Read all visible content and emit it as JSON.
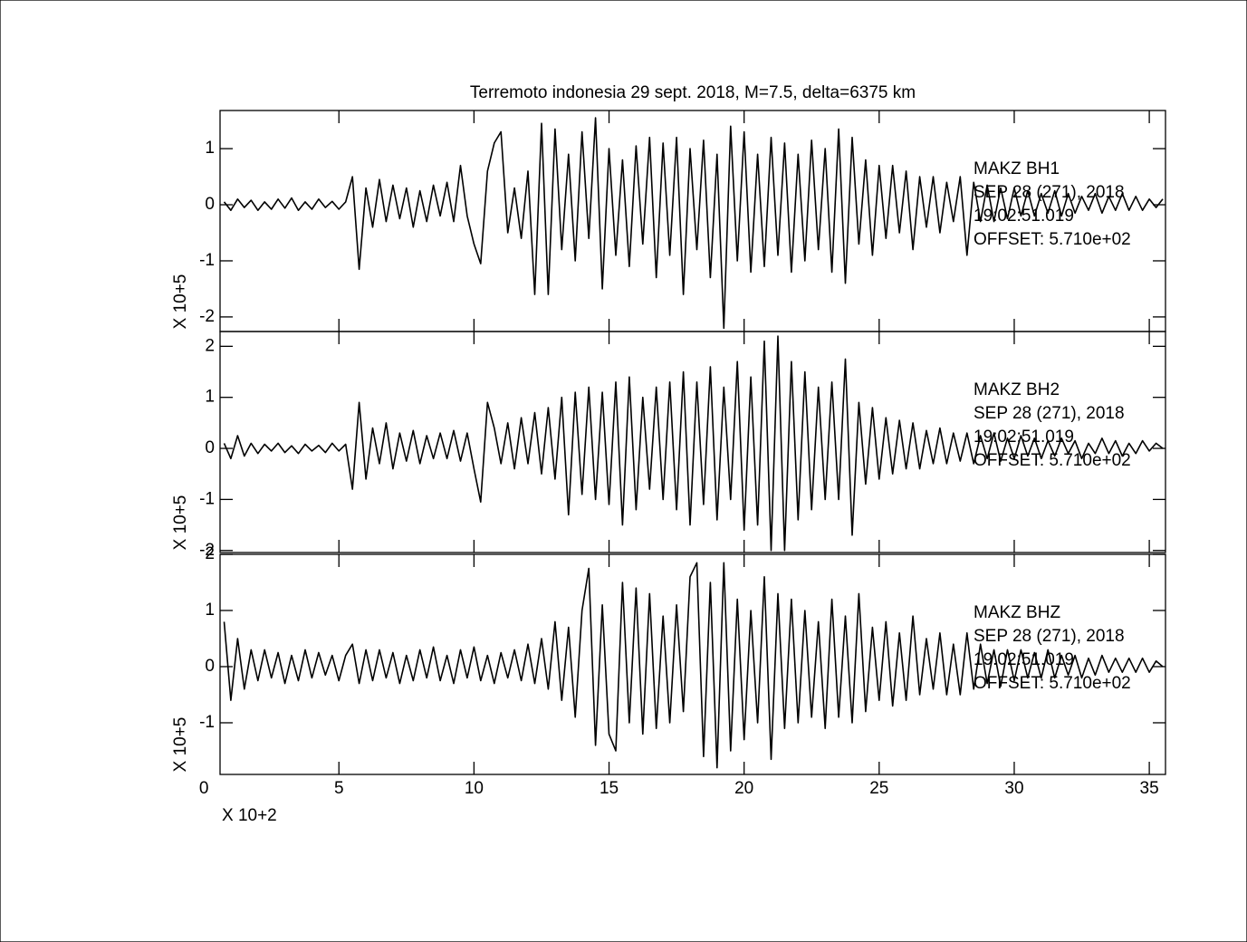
{
  "chart_data": [
    {
      "type": "line",
      "title": "Terremoto indonesia 29 sept. 2018, M=7.5, delta=6375 km",
      "ylabel": "X 10+5",
      "annotations": [
        "MAKZ   BH1",
        "SEP 28 (271), 2018",
        "19:02:51.019",
        "OFFSET:   5.710e+02"
      ],
      "color": "#000000",
      "xlim": [
        0.6,
        35.6
      ],
      "ylim": [
        -2.26,
        1.68
      ],
      "yticks": [
        -2,
        -1,
        0,
        1
      ],
      "x": [
        0.75,
        1,
        1.25,
        1.5,
        1.75,
        2,
        2.25,
        2.5,
        2.75,
        3,
        3.25,
        3.5,
        3.75,
        4,
        4.25,
        4.5,
        4.75,
        5,
        5.25,
        5.5,
        5.75,
        6,
        6.25,
        6.5,
        6.75,
        7,
        7.25,
        7.5,
        7.75,
        8,
        8.25,
        8.5,
        8.75,
        9,
        9.25,
        9.5,
        9.75,
        10,
        10.25,
        10.5,
        10.75,
        11,
        11.25,
        11.5,
        11.75,
        12,
        12.25,
        12.5,
        12.75,
        13,
        13.25,
        13.5,
        13.75,
        14,
        14.25,
        14.5,
        14.75,
        15,
        15.25,
        15.5,
        15.75,
        16,
        16.25,
        16.5,
        16.75,
        17,
        17.25,
        17.5,
        17.75,
        18,
        18.25,
        18.5,
        18.75,
        19,
        19.25,
        19.5,
        19.75,
        20,
        20.25,
        20.5,
        20.75,
        21,
        21.25,
        21.5,
        21.75,
        22,
        22.25,
        22.5,
        22.75,
        23,
        23.25,
        23.5,
        23.75,
        24,
        24.25,
        24.5,
        24.75,
        25,
        25.25,
        25.5,
        25.75,
        26,
        26.25,
        26.5,
        26.75,
        27,
        27.25,
        27.5,
        27.75,
        28,
        28.25,
        28.5,
        28.75,
        29,
        29.25,
        29.5,
        29.75,
        30,
        30.25,
        30.5,
        30.75,
        31,
        31.25,
        31.5,
        31.75,
        32,
        32.25,
        32.5,
        32.75,
        33,
        33.25,
        33.5,
        33.75,
        34,
        34.25,
        34.5,
        34.75,
        35,
        35.25,
        35.5
      ],
      "values": [
        0.05,
        -0.1,
        0.1,
        -0.05,
        0.08,
        -0.1,
        0.05,
        -0.08,
        0.1,
        -0.06,
        0.12,
        -0.1,
        0.05,
        -0.08,
        0.1,
        -0.05,
        0.06,
        -0.08,
        0.05,
        0.5,
        -1.15,
        0.3,
        -0.4,
        0.45,
        -0.3,
        0.35,
        -0.25,
        0.3,
        -0.4,
        0.25,
        -0.3,
        0.35,
        -0.2,
        0.4,
        -0.3,
        0.7,
        -0.2,
        -0.7,
        -1.05,
        0.6,
        1.1,
        1.3,
        -0.5,
        0.3,
        -0.6,
        0.6,
        -1.6,
        1.45,
        -1.6,
        1.35,
        -0.8,
        0.9,
        -1.0,
        1.3,
        -0.6,
        1.55,
        -1.5,
        1.0,
        -0.9,
        0.8,
        -1.1,
        1.05,
        -0.7,
        1.2,
        -1.3,
        1.1,
        -0.9,
        1.2,
        -1.6,
        1.0,
        -0.8,
        1.15,
        -1.3,
        0.9,
        -2.2,
        1.4,
        -1.0,
        1.3,
        -1.2,
        0.9,
        -1.1,
        1.2,
        -0.9,
        1.1,
        -1.2,
        0.9,
        -1.0,
        1.15,
        -0.8,
        1.0,
        -1.2,
        1.35,
        -1.4,
        1.2,
        -0.7,
        0.8,
        -0.9,
        0.7,
        -0.6,
        0.7,
        -0.5,
        0.6,
        -0.8,
        0.5,
        -0.4,
        0.5,
        -0.5,
        0.4,
        -0.3,
        0.5,
        -0.9,
        0.4,
        -0.3,
        0.35,
        -0.3,
        0.3,
        -0.25,
        0.3,
        -0.2,
        0.25,
        -0.2,
        0.2,
        -0.15,
        0.25,
        -0.2,
        0.2,
        -0.15,
        0.15,
        -0.1,
        0.2,
        -0.15,
        0.15,
        -0.1,
        0.2,
        -0.1,
        0.15,
        -0.1,
        0.1,
        -0.05,
        0.1
      ]
    },
    {
      "type": "line",
      "ylabel": "X 10+5",
      "annotations": [
        "MAKZ   BH2",
        "SEP 28 (271), 2018",
        "19:02:51.019",
        "OFFSET:   5.710e+02"
      ],
      "color": "#000000",
      "xlim": [
        0.6,
        35.6
      ],
      "ylim": [
        -2.04,
        2.29
      ],
      "yticks": [
        -2,
        -1,
        0,
        1,
        2
      ],
      "x": [
        0.75,
        1,
        1.25,
        1.5,
        1.75,
        2,
        2.25,
        2.5,
        2.75,
        3,
        3.25,
        3.5,
        3.75,
        4,
        4.25,
        4.5,
        4.75,
        5,
        5.25,
        5.5,
        5.75,
        6,
        6.25,
        6.5,
        6.75,
        7,
        7.25,
        7.5,
        7.75,
        8,
        8.25,
        8.5,
        8.75,
        9,
        9.25,
        9.5,
        9.75,
        10,
        10.25,
        10.5,
        10.75,
        11,
        11.25,
        11.5,
        11.75,
        12,
        12.25,
        12.5,
        12.75,
        13,
        13.25,
        13.5,
        13.75,
        14,
        14.25,
        14.5,
        14.75,
        15,
        15.25,
        15.5,
        15.75,
        16,
        16.25,
        16.5,
        16.75,
        17,
        17.25,
        17.5,
        17.75,
        18,
        18.25,
        18.5,
        18.75,
        19,
        19.25,
        19.5,
        19.75,
        20,
        20.25,
        20.5,
        20.75,
        21,
        21.25,
        21.5,
        21.75,
        22,
        22.25,
        22.5,
        22.75,
        23,
        23.25,
        23.5,
        23.75,
        24,
        24.25,
        24.5,
        24.75,
        25,
        25.25,
        25.5,
        25.75,
        26,
        26.25,
        26.5,
        26.75,
        27,
        27.25,
        27.5,
        27.75,
        28,
        28.25,
        28.5,
        28.75,
        29,
        29.25,
        29.5,
        29.75,
        30,
        30.25,
        30.5,
        30.75,
        31,
        31.25,
        31.5,
        31.75,
        32,
        32.25,
        32.5,
        32.75,
        33,
        33.25,
        33.5,
        33.75,
        34,
        34.25,
        34.5,
        34.75,
        35,
        35.25,
        35.5
      ],
      "values": [
        0.1,
        -0.2,
        0.25,
        -0.15,
        0.1,
        -0.1,
        0.08,
        -0.05,
        0.1,
        -0.08,
        0.05,
        -0.1,
        0.08,
        -0.05,
        0.06,
        -0.08,
        0.1,
        -0.05,
        0.08,
        -0.8,
        0.9,
        -0.6,
        0.4,
        -0.3,
        0.5,
        -0.4,
        0.3,
        -0.25,
        0.35,
        -0.3,
        0.25,
        -0.2,
        0.3,
        -0.2,
        0.35,
        -0.25,
        0.3,
        -0.4,
        -1.05,
        0.9,
        0.4,
        -0.3,
        0.5,
        -0.4,
        0.6,
        -0.3,
        0.7,
        -0.5,
        0.8,
        -0.6,
        1.0,
        -1.3,
        1.1,
        -0.9,
        1.2,
        -1.0,
        1.1,
        -1.1,
        1.3,
        -1.5,
        1.4,
        -1.2,
        1.0,
        -0.8,
        1.2,
        -1.0,
        1.3,
        -1.2,
        1.5,
        -1.5,
        1.3,
        -1.1,
        1.6,
        -1.4,
        1.2,
        -1.0,
        1.7,
        -1.6,
        1.4,
        -1.5,
        2.1,
        -2.0,
        2.2,
        -2.0,
        1.7,
        -1.4,
        1.5,
        -1.2,
        1.2,
        -1.0,
        1.3,
        -1.0,
        1.75,
        -1.7,
        0.9,
        -0.7,
        0.8,
        -0.6,
        0.6,
        -0.5,
        0.55,
        -0.4,
        0.5,
        -0.4,
        0.35,
        -0.3,
        0.4,
        -0.3,
        0.3,
        -0.25,
        0.3,
        -0.3,
        0.25,
        -0.2,
        0.3,
        -0.25,
        0.2,
        -0.2,
        0.25,
        -0.15,
        0.2,
        -0.2,
        0.15,
        -0.15,
        0.2,
        -0.1,
        0.15,
        -0.2,
        0.1,
        -0.1,
        0.2,
        -0.1,
        0.15,
        -0.15,
        0.1,
        -0.1,
        0.15,
        -0.05,
        0.1,
        0.0
      ]
    },
    {
      "type": "line",
      "ylabel": "X 10+5",
      "xlabel": "X 10+2",
      "annotations": [
        "MAKZ   BHZ",
        "SEP 28 (271), 2018",
        "19:02:51.019",
        "OFFSET:   5.710e+02"
      ],
      "color": "#000000",
      "xlim": [
        0.6,
        35.6
      ],
      "ylim": [
        -1.92,
        2.0
      ],
      "yticks": [
        -1,
        0,
        1,
        2
      ],
      "xticks": [
        0,
        5,
        10,
        15,
        20,
        25,
        30,
        35
      ],
      "x": [
        0.75,
        1,
        1.25,
        1.5,
        1.75,
        2,
        2.25,
        2.5,
        2.75,
        3,
        3.25,
        3.5,
        3.75,
        4,
        4.25,
        4.5,
        4.75,
        5,
        5.25,
        5.5,
        5.75,
        6,
        6.25,
        6.5,
        6.75,
        7,
        7.25,
        7.5,
        7.75,
        8,
        8.25,
        8.5,
        8.75,
        9,
        9.25,
        9.5,
        9.75,
        10,
        10.25,
        10.5,
        10.75,
        11,
        11.25,
        11.5,
        11.75,
        12,
        12.25,
        12.5,
        12.75,
        13,
        13.25,
        13.5,
        13.75,
        14,
        14.25,
        14.5,
        14.75,
        15,
        15.25,
        15.5,
        15.75,
        16,
        16.25,
        16.5,
        16.75,
        17,
        17.25,
        17.5,
        17.75,
        18,
        18.25,
        18.5,
        18.75,
        19,
        19.25,
        19.5,
        19.75,
        20,
        20.25,
        20.5,
        20.75,
        21,
        21.25,
        21.5,
        21.75,
        22,
        22.25,
        22.5,
        22.75,
        23,
        23.25,
        23.5,
        23.75,
        24,
        24.25,
        24.5,
        24.75,
        25,
        25.25,
        25.5,
        25.75,
        26,
        26.25,
        26.5,
        26.75,
        27,
        27.25,
        27.5,
        27.75,
        28,
        28.25,
        28.5,
        28.75,
        29,
        29.25,
        29.5,
        29.75,
        30,
        30.25,
        30.5,
        30.75,
        31,
        31.25,
        31.5,
        31.75,
        32,
        32.25,
        32.5,
        32.75,
        33,
        33.25,
        33.5,
        33.75,
        34,
        34.25,
        34.5,
        34.75,
        35,
        35.25,
        35.5
      ],
      "values": [
        0.8,
        -0.6,
        0.5,
        -0.4,
        0.3,
        -0.25,
        0.3,
        -0.2,
        0.25,
        -0.3,
        0.2,
        -0.25,
        0.3,
        -0.2,
        0.25,
        -0.15,
        0.2,
        -0.25,
        0.2,
        0.4,
        -0.3,
        0.3,
        -0.25,
        0.3,
        -0.2,
        0.25,
        -0.3,
        0.2,
        -0.25,
        0.3,
        -0.2,
        0.35,
        -0.25,
        0.2,
        -0.3,
        0.3,
        -0.2,
        0.35,
        -0.25,
        0.2,
        -0.3,
        0.25,
        -0.2,
        0.3,
        -0.25,
        0.4,
        -0.3,
        0.5,
        -0.4,
        0.8,
        -0.6,
        0.7,
        -0.9,
        1.0,
        1.75,
        -1.4,
        1.1,
        -1.2,
        -1.5,
        1.5,
        -1.0,
        1.4,
        -1.2,
        1.3,
        -1.1,
        0.9,
        -1.0,
        1.1,
        -0.8,
        1.6,
        1.85,
        -1.6,
        1.5,
        -1.8,
        1.85,
        -1.5,
        1.2,
        -1.3,
        1.0,
        -1.0,
        1.6,
        -1.65,
        1.3,
        -1.1,
        1.2,
        -1.0,
        1.0,
        -0.9,
        0.8,
        -1.1,
        1.2,
        -0.9,
        0.9,
        -1.0,
        1.3,
        -0.8,
        0.7,
        -0.6,
        0.8,
        -0.7,
        0.6,
        -0.6,
        0.9,
        -0.5,
        0.5,
        -0.4,
        0.6,
        -0.5,
        0.4,
        -0.5,
        0.6,
        -0.4,
        0.4,
        -0.3,
        0.3,
        -0.35,
        0.3,
        -0.25,
        0.3,
        -0.2,
        0.25,
        -0.2,
        0.3,
        -0.2,
        0.2,
        -0.15,
        0.2,
        -0.2,
        0.15,
        -0.15,
        0.2,
        -0.1,
        0.15,
        -0.1,
        0.15,
        -0.1,
        0.15,
        -0.1,
        0.1,
        0.0
      ]
    }
  ]
}
